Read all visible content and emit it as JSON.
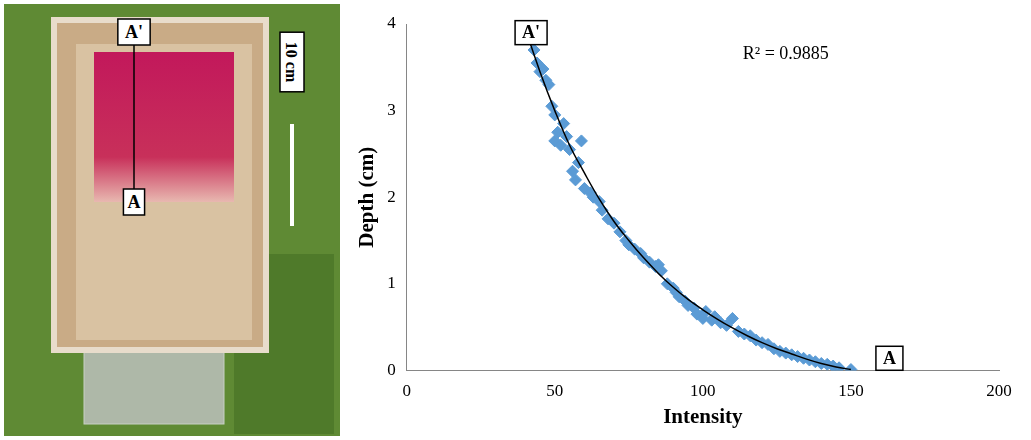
{
  "chart_data": {
    "type": "scatter",
    "x_label": "Intensity",
    "y_label": "Depth (cm)",
    "xlim": [
      0,
      200
    ],
    "xticks": [
      0,
      50,
      100,
      150,
      200
    ],
    "ylim": [
      0,
      4
    ],
    "yticks": [
      0,
      1,
      2,
      3,
      4
    ],
    "grid": false,
    "annotations": [
      {
        "text": "R² = 0.9885",
        "x": 128,
        "y": 3.65
      }
    ],
    "point_labels": [
      {
        "text": "A'",
        "x": 42,
        "y": 3.9
      },
      {
        "text": "A",
        "x": 163,
        "y": 0.14
      }
    ],
    "series": [
      {
        "type": "scatter",
        "color": "#5b9bd5",
        "marker": "diamond",
        "x": [
          42,
          43,
          44,
          45,
          46,
          47,
          48,
          49,
          50,
          50,
          51,
          52,
          53,
          54,
          55,
          56,
          57,
          58,
          59,
          60,
          62,
          63,
          65,
          66,
          68,
          70,
          72,
          74,
          75,
          77,
          79,
          80,
          82,
          84,
          85,
          86,
          88,
          90,
          91,
          92,
          94,
          95,
          97,
          98,
          100,
          101,
          103,
          104,
          106,
          108,
          110,
          112,
          114,
          116,
          118,
          120,
          122,
          124,
          126,
          128,
          130,
          132,
          134,
          136,
          138,
          140,
          142,
          144,
          146,
          150
        ],
        "values": [
          3.82,
          3.7,
          3.55,
          3.45,
          3.48,
          3.35,
          3.3,
          3.05,
          2.95,
          2.65,
          2.75,
          2.6,
          2.85,
          2.7,
          2.55,
          2.3,
          2.2,
          2.4,
          2.65,
          2.1,
          2.05,
          2.0,
          1.95,
          1.85,
          1.75,
          1.7,
          1.6,
          1.5,
          1.45,
          1.4,
          1.35,
          1.3,
          1.25,
          1.2,
          1.22,
          1.15,
          1.0,
          0.95,
          0.9,
          0.85,
          0.8,
          0.75,
          0.72,
          0.65,
          0.6,
          0.68,
          0.58,
          0.62,
          0.55,
          0.52,
          0.6,
          0.45,
          0.42,
          0.4,
          0.35,
          0.32,
          0.3,
          0.25,
          0.22,
          0.2,
          0.18,
          0.16,
          0.14,
          0.12,
          0.1,
          0.08,
          0.07,
          0.05,
          0.03,
          0.01
        ]
      },
      {
        "type": "line",
        "color": "#000000",
        "line_style": "solid",
        "x": [
          40,
          45,
          50,
          55,
          60,
          65,
          70,
          75,
          80,
          85,
          90,
          95,
          100,
          105,
          110,
          115,
          120,
          125,
          130,
          135,
          140,
          145,
          150
        ],
        "values": [
          3.95,
          3.45,
          3.0,
          2.6,
          2.28,
          1.98,
          1.72,
          1.5,
          1.3,
          1.12,
          0.96,
          0.82,
          0.7,
          0.59,
          0.49,
          0.4,
          0.32,
          0.25,
          0.19,
          0.13,
          0.08,
          0.04,
          0.01
        ]
      }
    ]
  },
  "photo_panel": {
    "line_top_label": "A'",
    "line_bottom_label": "A",
    "scale_bar_label": "10 cm"
  }
}
